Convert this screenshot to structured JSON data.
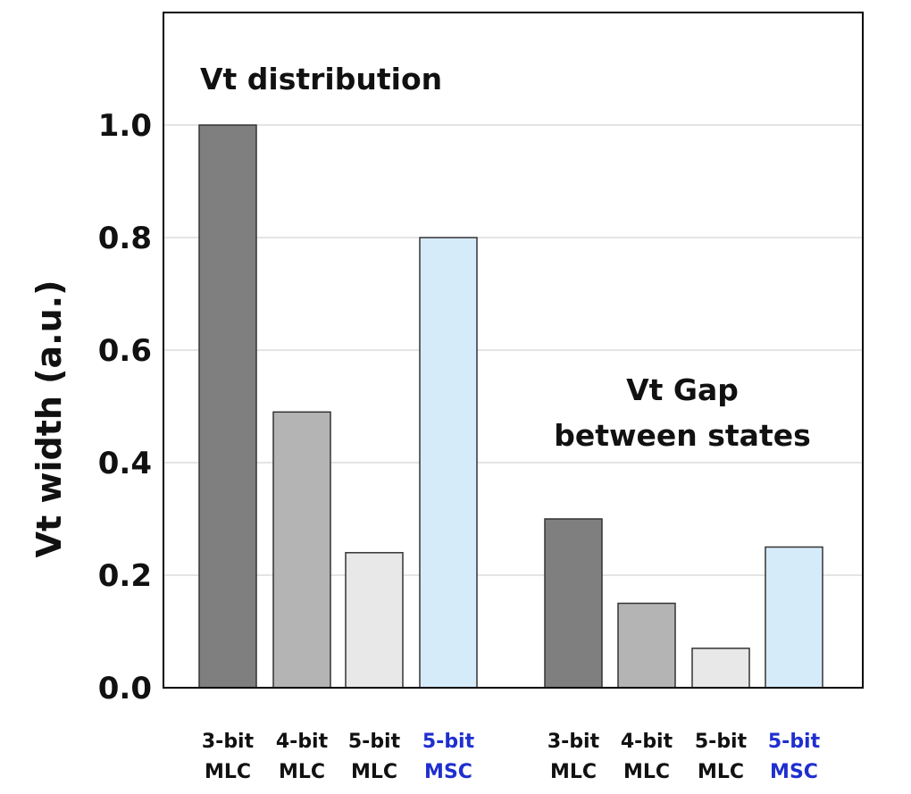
{
  "chart_data": {
    "type": "bar",
    "ylabel": "Vt width (a.u.)",
    "ylim": [
      0,
      1.2
    ],
    "yticks": [
      "0.0",
      "0.2",
      "0.4",
      "0.6",
      "0.8",
      "1.0"
    ],
    "grid": true,
    "groups": [
      {
        "label": "Vt distribution",
        "bars": [
          {
            "line1": "3-bit",
            "line2": "MLC",
            "value": 1.0,
            "color": "#7f7f7f",
            "highlight": false
          },
          {
            "line1": "4-bit",
            "line2": "MLC",
            "value": 0.49,
            "color": "#b4b4b4",
            "highlight": false
          },
          {
            "line1": "5-bit",
            "line2": "MLC",
            "value": 0.24,
            "color": "#e8e8e8",
            "highlight": false
          },
          {
            "line1": "5-bit",
            "line2": "MSC",
            "value": 0.8,
            "color": "#d6ebfa",
            "highlight": true
          }
        ]
      },
      {
        "label_lines": [
          "Vt Gap",
          "between states"
        ],
        "bars": [
          {
            "line1": "3-bit",
            "line2": "MLC",
            "value": 0.3,
            "color": "#7f7f7f",
            "highlight": false
          },
          {
            "line1": "4-bit",
            "line2": "MLC",
            "value": 0.15,
            "color": "#b4b4b4",
            "highlight": false
          },
          {
            "line1": "5-bit",
            "line2": "MLC",
            "value": 0.07,
            "color": "#e8e8e8",
            "highlight": false
          },
          {
            "line1": "5-bit",
            "line2": "MSC",
            "value": 0.25,
            "color": "#d6ebfa",
            "highlight": true
          }
        ]
      }
    ]
  }
}
